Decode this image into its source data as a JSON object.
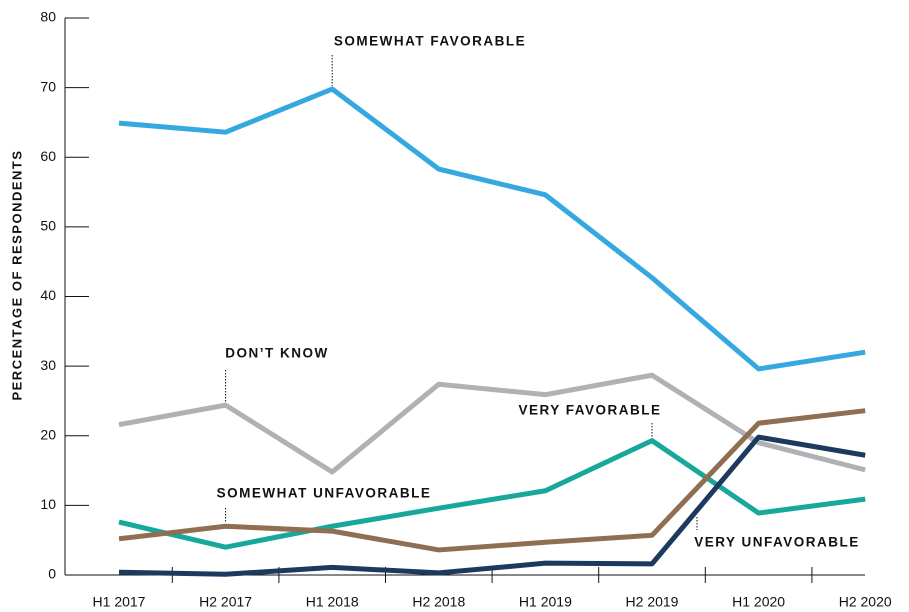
{
  "chart_data": {
    "type": "line",
    "y_label": "PERCENTAGE OF RESPONDENTS",
    "categories": [
      "H1 2017",
      "H2 2017",
      "H1 2018",
      "H2 2018",
      "H1 2019",
      "H2 2019",
      "H1 2020",
      "H2 2020"
    ],
    "series": [
      {
        "name": "SOMEWHAT FAVORABLE",
        "color": "#35a8e0",
        "values": [
          64.9,
          63.6,
          69.8,
          58.3,
          54.6,
          42.7,
          29.6,
          32.0
        ]
      },
      {
        "name": "DON’T KNOW",
        "color": "#b1b1b5",
        "values": [
          21.6,
          24.4,
          14.8,
          27.4,
          25.9,
          28.7,
          19.0,
          15.1
        ]
      },
      {
        "name": "VERY FAVORABLE",
        "color": "#16a89a",
        "values": [
          7.6,
          4.0,
          7.0,
          9.6,
          12.1,
          19.3,
          8.9,
          10.9
        ]
      },
      {
        "name": "SOMEWHAT UNFAVORABLE",
        "color": "#8f6e51",
        "values": [
          5.2,
          7.0,
          6.3,
          3.6,
          4.7,
          5.7,
          21.8,
          23.6
        ]
      },
      {
        "name": "VERY UNFAVORABLE",
        "color": "#1b3a5e",
        "values": [
          0.4,
          0.1,
          1.1,
          0.3,
          1.7,
          1.6,
          19.8,
          17.2
        ]
      }
    ],
    "ylim": [
      0,
      80
    ],
    "yticks": [
      0,
      10,
      20,
      30,
      40,
      50,
      60,
      70,
      80
    ]
  }
}
